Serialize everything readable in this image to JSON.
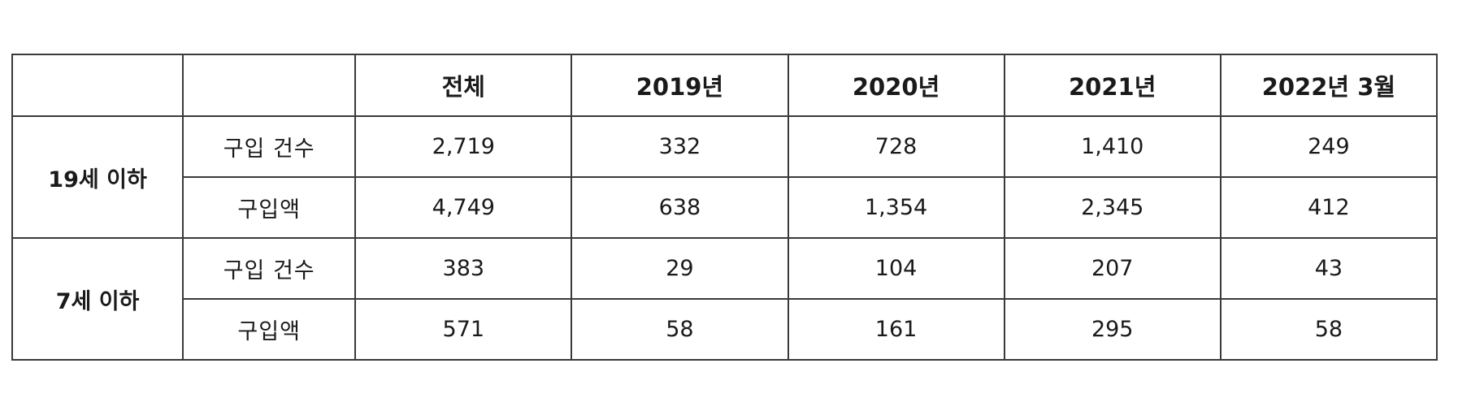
{
  "table": {
    "header": [
      "",
      "",
      "전체",
      "2019년",
      "2020년",
      "2021년",
      "2022년 3월"
    ],
    "groups": [
      {
        "label": "19세 이하",
        "rows": [
          {
            "metric": "구입 건수",
            "values": [
              "2,719",
              "332",
              "728",
              "1,410",
              "249"
            ]
          },
          {
            "metric": "구입액",
            "values": [
              "4,749",
              "638",
              "1,354",
              "2,345",
              "412"
            ]
          }
        ]
      },
      {
        "label": "7세 이하",
        "rows": [
          {
            "metric": "구입 건수",
            "values": [
              "383",
              "29",
              "104",
              "207",
              "43"
            ]
          },
          {
            "metric": "구입액",
            "values": [
              "571",
              "58",
              "161",
              "295",
              "58"
            ]
          }
        ]
      }
    ]
  }
}
